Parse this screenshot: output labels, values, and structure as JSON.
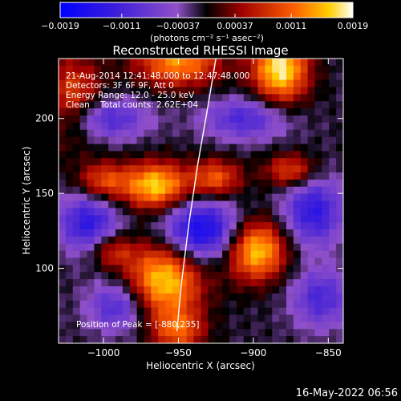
{
  "chart_data": {
    "type": "heatmap",
    "title": "Reconstructed RHESSI Image",
    "xlabel": "Heliocentric X (arcsec)",
    "ylabel": "Heliocentric Y (arcsec)",
    "xlim": [
      -1030,
      -840
    ],
    "ylim": [
      50,
      240
    ],
    "xticks": [
      -1000,
      -950,
      -900,
      -850
    ],
    "yticks": [
      100,
      150,
      200
    ],
    "xtick_labels": [
      "−1000",
      "−950",
      "−900",
      "−850"
    ],
    "ytick_labels": [
      "100",
      "150",
      "200"
    ],
    "colorbar": {
      "range": [
        -0.0019,
        0.0019
      ],
      "ticks": [
        -0.0019,
        -0.0011,
        -0.00037,
        0.00037,
        0.0011,
        0.0019
      ],
      "tick_labels": [
        "−0.0019",
        "−0.0011",
        "−0.00037",
        "0.00037",
        "0.0011",
        "0.0019"
      ],
      "unit_label": "(photons cm⁻² s⁻¹ asec⁻²)"
    },
    "annotations": {
      "time_range": "21-Aug-2014 12:41:48.000 to 12:47:48.000",
      "detectors": "Detectors: 3F 6F 9F, Att 0",
      "energy": "Energy Range: 12.0 - 25.0 keV",
      "clean": "Clean    Total counts: 2.62E+04",
      "peak": "Position of Peak = [-880,235]"
    },
    "sources": [
      {
        "x": -1020,
        "y": 213,
        "sx": 14,
        "sy": 20,
        "amp": 0.55
      },
      {
        "x": -950,
        "y": 238,
        "sx": 20,
        "sy": 12,
        "amp": 0.75
      },
      {
        "x": -882,
        "y": 233,
        "sx": 13,
        "sy": 16,
        "amp": 1.0
      },
      {
        "x": -965,
        "y": 155,
        "sx": 15,
        "sy": 11,
        "amp": 0.92
      },
      {
        "x": -1000,
        "y": 158,
        "sx": 12,
        "sy": 9,
        "amp": 0.55
      },
      {
        "x": -925,
        "y": 160,
        "sx": 12,
        "sy": 9,
        "amp": 0.6
      },
      {
        "x": -875,
        "y": 165,
        "sx": 12,
        "sy": 8,
        "amp": 0.55
      },
      {
        "x": -960,
        "y": 92,
        "sx": 18,
        "sy": 18,
        "amp": 0.92
      },
      {
        "x": -995,
        "y": 112,
        "sx": 10,
        "sy": 8,
        "amp": 0.45
      },
      {
        "x": -898,
        "y": 112,
        "sx": 14,
        "sy": 14,
        "amp": 0.92
      },
      {
        "x": -950,
        "y": 58,
        "sx": 12,
        "sy": 10,
        "amp": 0.55
      },
      {
        "x": -935,
        "y": 125,
        "sx": 18,
        "sy": 14,
        "amp": -0.85
      },
      {
        "x": -1010,
        "y": 130,
        "sx": 14,
        "sy": 14,
        "amp": -0.65
      },
      {
        "x": -860,
        "y": 138,
        "sx": 14,
        "sy": 16,
        "amp": -0.65
      },
      {
        "x": -1000,
        "y": 200,
        "sx": 20,
        "sy": 10,
        "amp": -0.55
      },
      {
        "x": -905,
        "y": 200,
        "sx": 20,
        "sy": 10,
        "amp": -0.5
      },
      {
        "x": -990,
        "y": 75,
        "sx": 14,
        "sy": 12,
        "amp": -0.55
      },
      {
        "x": -855,
        "y": 80,
        "sx": 14,
        "sy": 14,
        "amp": -0.5
      }
    ],
    "limb_curve": [
      [
        -925,
        240
      ],
      [
        -930,
        210
      ],
      [
        -937,
        170
      ],
      [
        -943,
        130
      ],
      [
        -948,
        90
      ],
      [
        -951,
        58
      ]
    ]
  },
  "footer_date": "16-May-2022 06:56"
}
